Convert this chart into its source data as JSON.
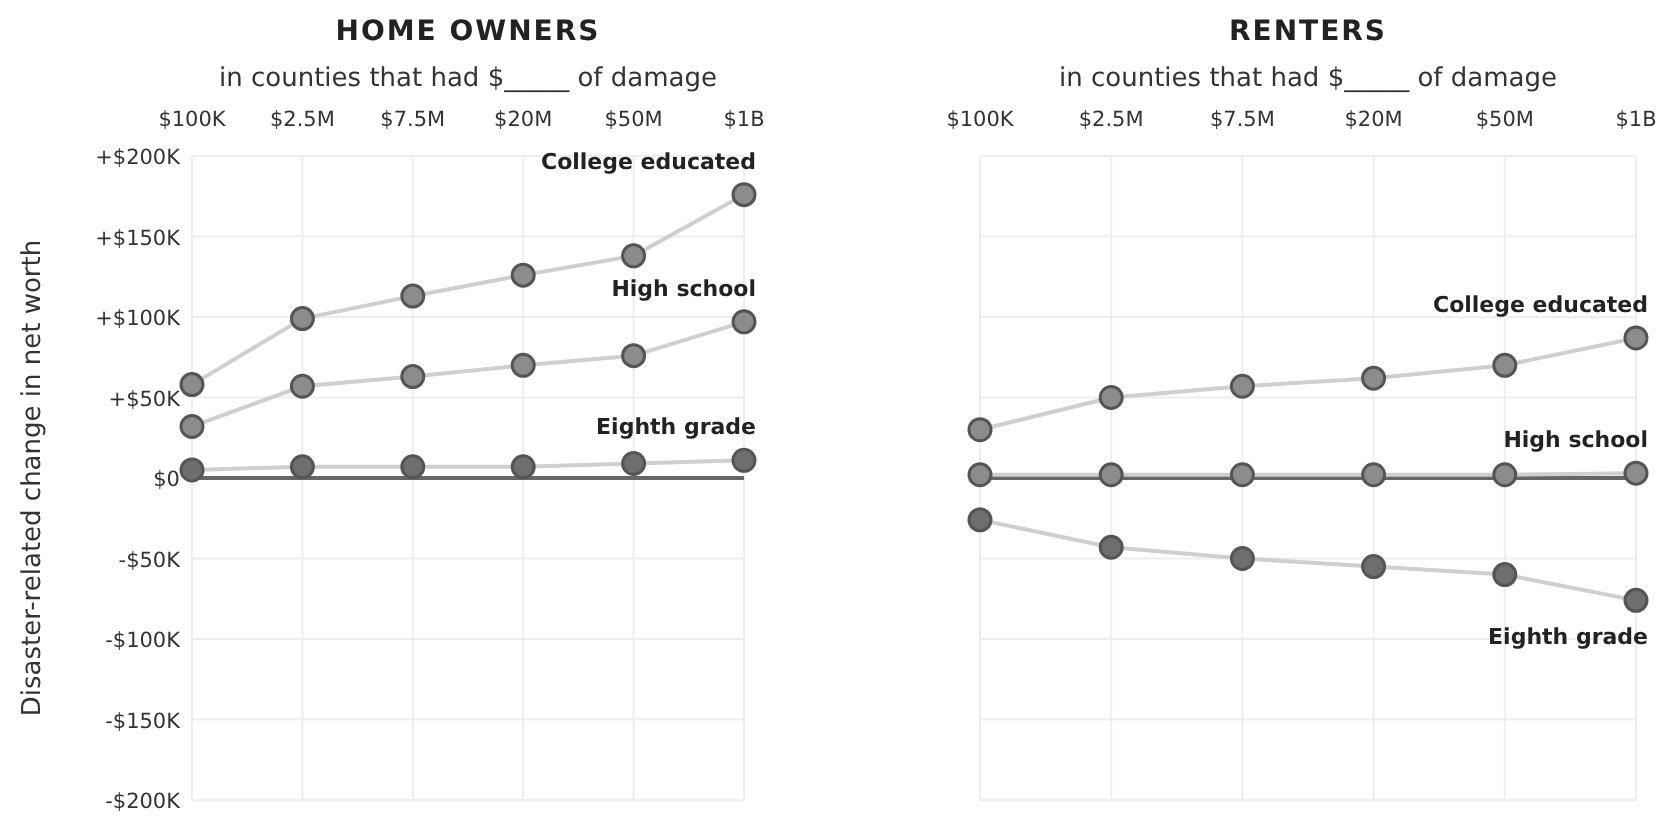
{
  "chart_data": [
    {
      "type": "line",
      "title": "HOME OWNERS",
      "subtitle": "in counties that had $_____ of damage",
      "ylabel": "Disaster-related change in net worth",
      "categories": [
        "$100K",
        "$2.5M",
        "$7.5M",
        "$20M",
        "$50M",
        "$1B"
      ],
      "series": [
        {
          "name": "College educated",
          "color": "#8c8c8c",
          "values": [
            58000,
            99000,
            113000,
            126000,
            138000,
            176000
          ]
        },
        {
          "name": "High school",
          "color": "#8c8c8c",
          "values": [
            32000,
            57000,
            63000,
            70000,
            76000,
            97000
          ]
        },
        {
          "name": "Eighth grade",
          "color": "#6e6e6e",
          "values": [
            5000,
            7000,
            7000,
            7000,
            9000,
            11000
          ]
        }
      ],
      "ylim": [
        -200000,
        200000
      ],
      "yticks": [
        {
          "value": -200000,
          "label": "-$200K"
        },
        {
          "value": -150000,
          "label": "-$150K"
        },
        {
          "value": -100000,
          "label": "-$100K"
        },
        {
          "value": -50000,
          "label": "-$50K"
        },
        {
          "value": 0,
          "label": "$0"
        },
        {
          "value": 50000,
          "label": "+$50K"
        },
        {
          "value": 100000,
          "label": "+$100K"
        },
        {
          "value": 150000,
          "label": "+$150K"
        },
        {
          "value": 200000,
          "label": "+$200K"
        }
      ],
      "ref_lines": [
        {
          "axis": "y",
          "value": 0,
          "color": "#666666"
        }
      ],
      "grid": true,
      "marker": "circle"
    },
    {
      "type": "line",
      "title": "RENTERS",
      "subtitle": "in counties that had $_____ of damage",
      "categories": [
        "$100K",
        "$2.5M",
        "$7.5M",
        "$20M",
        "$50M",
        "$1B"
      ],
      "series": [
        {
          "name": "College educated",
          "color": "#8c8c8c",
          "values": [
            30000,
            50000,
            57000,
            62000,
            70000,
            87000
          ]
        },
        {
          "name": "High school",
          "color": "#8c8c8c",
          "values": [
            2000,
            2000,
            2000,
            2000,
            2000,
            3000
          ]
        },
        {
          "name": "Eighth grade",
          "color": "#6e6e6e",
          "values": [
            -26000,
            -43000,
            -50000,
            -55000,
            -60000,
            -76000
          ]
        }
      ],
      "ylim": [
        -200000,
        200000
      ],
      "ref_lines": [
        {
          "axis": "y",
          "value": 0,
          "color": "#666666"
        }
      ],
      "grid": true,
      "marker": "circle",
      "tick_labels": "x",
      "yticks": [
        -200000,
        -150000,
        -100000,
        -50000,
        0,
        50000,
        100000,
        150000,
        200000
      ]
    }
  ]
}
